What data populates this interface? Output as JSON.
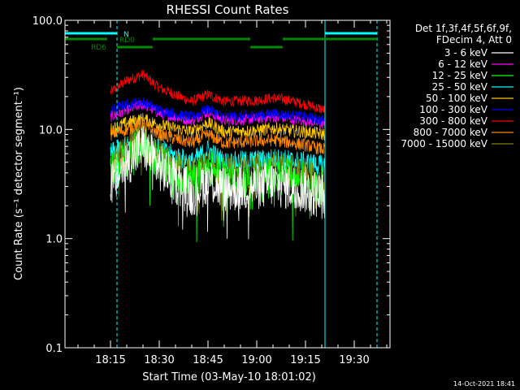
{
  "chart_data": {
    "type": "line",
    "title": "RHESSI Count Rates",
    "xlabel": "Start Time (03-May-10 18:01:02)",
    "ylabel": "Count Rate (s⁻¹ detector segment⁻¹)",
    "yscale": "log",
    "ylim": [
      0.1,
      100
    ],
    "xlim": [
      "18:01",
      "19:41"
    ],
    "y_ticks": [
      "100.0",
      "10.0",
      "1.0",
      "0.1"
    ],
    "x_ticks": [
      "18:15",
      "18:30",
      "18:45",
      "19:00",
      "19:15",
      "19:30"
    ],
    "legend_header": [
      "Det 1f,3f,4f,5f,6f,9f,",
      "FDecim 4, Att 0"
    ],
    "legend_placement": "right",
    "series": [
      {
        "name": "3 - 6 keV",
        "color": "#ffffff",
        "x": [
          "18:15",
          "18:20",
          "18:25",
          "18:30",
          "18:40",
          "18:45",
          "18:50",
          "19:00",
          "19:05",
          "19:10",
          "19:15",
          "19:21"
        ],
        "values": [
          3.0,
          5.0,
          7.0,
          4.5,
          2.6,
          3.5,
          2.8,
          3.0,
          3.2,
          3.0,
          2.8,
          2.4
        ]
      },
      {
        "name": "6 - 12 keV",
        "color": "#ff00ff",
        "x": [
          "18:15",
          "18:20",
          "18:25",
          "18:30",
          "18:40",
          "18:45",
          "18:50",
          "19:00",
          "19:05",
          "19:10",
          "19:15",
          "19:21"
        ],
        "values": [
          13,
          15,
          17,
          14,
          12,
          14.5,
          12,
          12.5,
          13,
          12.5,
          12,
          11
        ]
      },
      {
        "name": "12 - 25 keV",
        "color": "#00ff00",
        "x": [
          "18:15",
          "18:20",
          "18:25",
          "18:30",
          "18:40",
          "18:45",
          "18:50",
          "19:00",
          "19:05",
          "19:10",
          "19:15",
          "19:21"
        ],
        "values": [
          4.0,
          5.5,
          7.5,
          5.0,
          3.2,
          4.5,
          3.5,
          3.6,
          3.8,
          3.6,
          3.4,
          3.0
        ]
      },
      {
        "name": "25 - 50 keV",
        "color": "#00ffff",
        "x": [
          "18:15",
          "18:20",
          "18:25",
          "18:30",
          "18:40",
          "18:45",
          "18:50",
          "19:00",
          "19:05",
          "19:10",
          "19:15",
          "19:21"
        ],
        "values": [
          6.0,
          7.0,
          8.0,
          6.5,
          5.0,
          6.5,
          5.0,
          5.2,
          5.4,
          5.2,
          5.0,
          4.6
        ]
      },
      {
        "name": "50 - 100 keV",
        "color": "#ffc800",
        "x": [
          "18:15",
          "18:20",
          "18:25",
          "18:30",
          "18:40",
          "18:45",
          "18:50",
          "19:00",
          "19:05",
          "19:10",
          "19:15",
          "19:21"
        ],
        "values": [
          10,
          11.5,
          12.5,
          11,
          9.5,
          11.5,
          9.5,
          9.8,
          10.2,
          9.8,
          9.5,
          9.0
        ]
      },
      {
        "name": "100 - 300 keV",
        "color": "#0000ff",
        "x": [
          "18:15",
          "18:20",
          "18:25",
          "18:30",
          "18:40",
          "18:45",
          "18:50",
          "19:00",
          "19:05",
          "19:10",
          "19:15",
          "19:21"
        ],
        "values": [
          15,
          17,
          18,
          15,
          13,
          15.5,
          13,
          13.5,
          14,
          13.5,
          13,
          12
        ]
      },
      {
        "name": "300 - 800 keV",
        "color": "#ff0000",
        "x": [
          "18:15",
          "18:20",
          "18:25",
          "18:30",
          "18:40",
          "18:45",
          "18:50",
          "19:00",
          "19:05",
          "19:10",
          "19:15",
          "19:21"
        ],
        "values": [
          22,
          28,
          32,
          24,
          18,
          21,
          18,
          18.5,
          19.5,
          18.5,
          17,
          15
        ]
      },
      {
        "name": "800 - 7000 keV",
        "color": "#ff8800",
        "x": [
          "18:15",
          "18:20",
          "18:25",
          "18:30",
          "18:40",
          "18:45",
          "18:50",
          "19:00",
          "19:05",
          "19:10",
          "19:15",
          "19:21"
        ],
        "values": [
          9.0,
          10.0,
          11.0,
          9.0,
          7.5,
          9.0,
          7.5,
          7.8,
          8.0,
          7.6,
          7.2,
          6.5
        ]
      },
      {
        "name": "7000 - 15000 keV",
        "color": "#808000",
        "x": [
          "18:15",
          "18:20",
          "18:25",
          "18:30",
          "18:40",
          "18:45",
          "18:50",
          "19:00",
          "19:05",
          "19:10",
          "19:15",
          "19:21"
        ],
        "values": [
          4.5,
          6.0,
          8.0,
          5.5,
          3.5,
          5.0,
          3.8,
          4.0,
          4.2,
          4.0,
          3.8,
          3.3
        ]
      }
    ],
    "attenuator_bars": [
      {
        "label": "N",
        "color": "#00ffff",
        "segments": [
          [
            "18:01",
            "18:17"
          ],
          [
            "19:21",
            "19:37"
          ]
        ]
      },
      {
        "label": "RD0",
        "color": "#008800",
        "segments": [
          [
            "18:01",
            "18:14"
          ],
          [
            "18:28",
            "18:58"
          ],
          [
            "19:08",
            "19:37"
          ]
        ]
      },
      {
        "label": "RD6",
        "color": "#008800",
        "segments": [
          [
            "18:17",
            "18:28"
          ],
          [
            "18:58",
            "19:08"
          ]
        ]
      }
    ],
    "vertical_markers": [
      {
        "x": "18:17",
        "style": "dashed",
        "color": "#00ffff"
      },
      {
        "x": "19:21",
        "style": "solid",
        "color": "#00ffff"
      },
      {
        "x": "19:37",
        "style": "dashed",
        "color": "#00ffff"
      }
    ],
    "timestamp": "14-Oct-2021 18:41"
  }
}
